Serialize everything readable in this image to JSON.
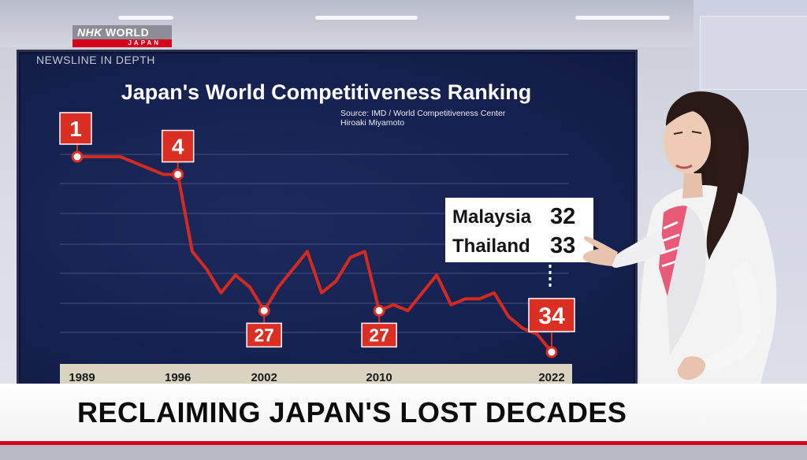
{
  "broadcaster": {
    "logo_main": "NHK",
    "logo_word": "WORLD",
    "logo_sub": "JAPAN"
  },
  "program_label": "NEWSLINE IN DEPTH",
  "headline": "RECLAIMING JAPAN'S LOST DECADES",
  "colors": {
    "accent_red": "#d42a1f",
    "screen_bg": "#172355",
    "label_red": "#dc2f23"
  },
  "chart_data": {
    "type": "line",
    "title": "Japan's World Competitiveness Ranking",
    "source_line1": "Source: IMD / World Competitiveness Center",
    "source_line2": "Hiroaki Miyamoto",
    "x_tick_labels": [
      "1989",
      "1996",
      "2002",
      "2010",
      "2022"
    ],
    "y_axis_inverted": true,
    "grid": true,
    "series": [
      {
        "points": [
          {
            "x": 1989,
            "y": 1
          },
          {
            "x": 1990,
            "y": 1
          },
          {
            "x": 1991,
            "y": 1
          },
          {
            "x": 1992,
            "y": 1
          },
          {
            "x": 1993,
            "y": 2
          },
          {
            "x": 1994,
            "y": 3
          },
          {
            "x": 1995,
            "y": 4
          },
          {
            "x": 1996,
            "y": 4
          },
          {
            "x": 1997,
            "y": 17
          },
          {
            "x": 1998,
            "y": 20
          },
          {
            "x": 1999,
            "y": 24
          },
          {
            "x": 2000,
            "y": 21
          },
          {
            "x": 2001,
            "y": 23
          },
          {
            "x": 2002,
            "y": 27
          },
          {
            "x": 2003,
            "y": 23
          },
          {
            "x": 2004,
            "y": 20
          },
          {
            "x": 2005,
            "y": 17
          },
          {
            "x": 2006,
            "y": 24
          },
          {
            "x": 2007,
            "y": 22
          },
          {
            "x": 2008,
            "y": 18
          },
          {
            "x": 2009,
            "y": 17
          },
          {
            "x": 2010,
            "y": 27
          },
          {
            "x": 2011,
            "y": 26
          },
          {
            "x": 2012,
            "y": 27
          },
          {
            "x": 2013,
            "y": 24
          },
          {
            "x": 2014,
            "y": 21
          },
          {
            "x": 2015,
            "y": 26
          },
          {
            "x": 2016,
            "y": 25
          },
          {
            "x": 2017,
            "y": 25
          },
          {
            "x": 2018,
            "y": 24
          },
          {
            "x": 2019,
            "y": 28
          },
          {
            "x": 2020,
            "y": 30
          },
          {
            "x": 2021,
            "y": 31
          },
          {
            "x": 2022,
            "y": 34
          }
        ]
      }
    ],
    "labeled_points": [
      {
        "x": 1989,
        "y": 1,
        "label": "1"
      },
      {
        "x": 1996,
        "y": 4,
        "label": "4"
      },
      {
        "x": 2002,
        "y": 27,
        "label": "27"
      },
      {
        "x": 2010,
        "y": 27,
        "label": "27"
      },
      {
        "x": 2022,
        "y": 34,
        "label": "34"
      }
    ],
    "annotation": {
      "rows": [
        {
          "country": "Malaysia",
          "rank": "32"
        },
        {
          "country": "Thailand",
          "rank": "33"
        }
      ]
    }
  }
}
